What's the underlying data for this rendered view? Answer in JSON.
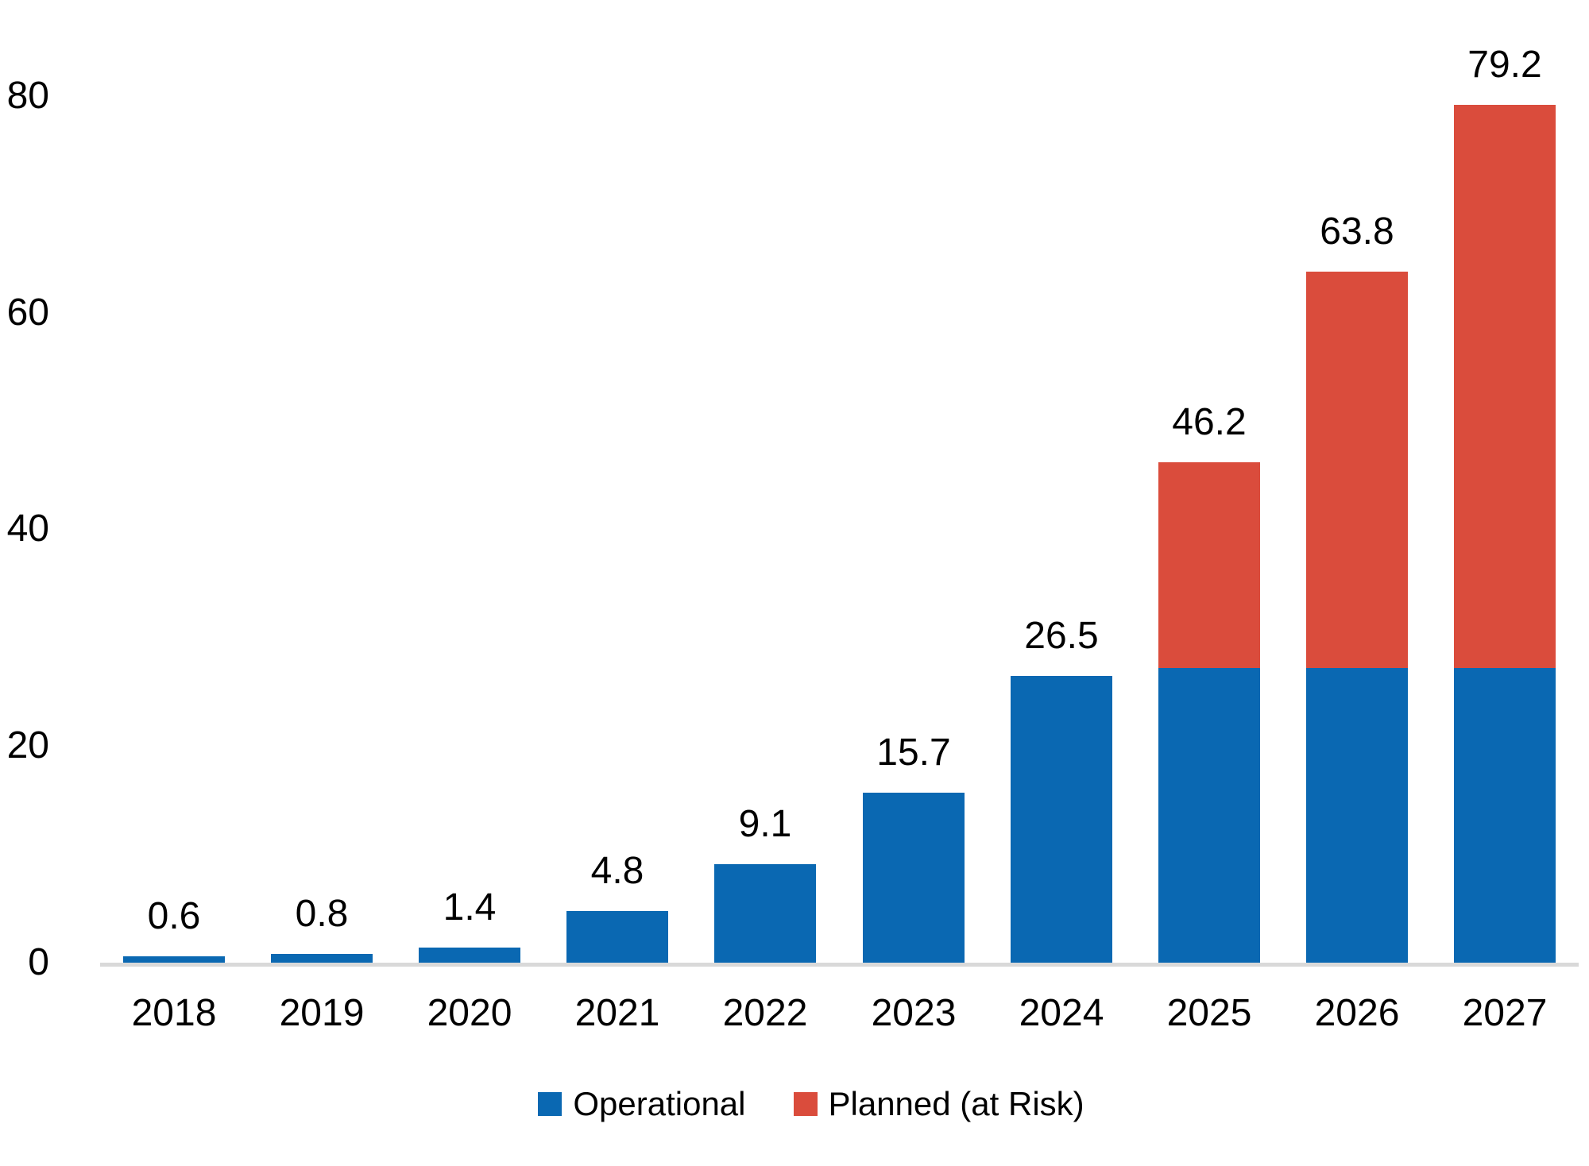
{
  "chart_data": {
    "type": "bar",
    "stacked": true,
    "title": "",
    "xlabel": "",
    "ylabel": "",
    "categories": [
      "2018",
      "2019",
      "2020",
      "2021",
      "2022",
      "2023",
      "2024",
      "2025",
      "2026",
      "2027"
    ],
    "series": [
      {
        "name": "Operational",
        "color": "#0a68b2",
        "values": [
          0.6,
          0.8,
          1.4,
          4.8,
          9.1,
          15.7,
          26.5,
          27.2,
          27.2,
          27.2
        ]
      },
      {
        "name": "Planned (at Risk)",
        "color": "#da4c3c",
        "values": [
          0,
          0,
          0,
          0,
          0,
          0,
          0,
          19.0,
          36.6,
          52.0
        ]
      }
    ],
    "total_labels": [
      "0.6",
      "0.8",
      "1.4",
      "4.8",
      "9.1",
      "15.7",
      "26.5",
      "46.2",
      "63.8",
      "79.2"
    ],
    "yticks": [
      "0",
      "20",
      "40",
      "60",
      "80"
    ],
    "ylim": [
      0,
      80
    ],
    "grid": false,
    "legend_position": "bottom",
    "axis_line_color": "#d9d9d9",
    "text_color": "#000000",
    "background_color": "#ffffff"
  }
}
